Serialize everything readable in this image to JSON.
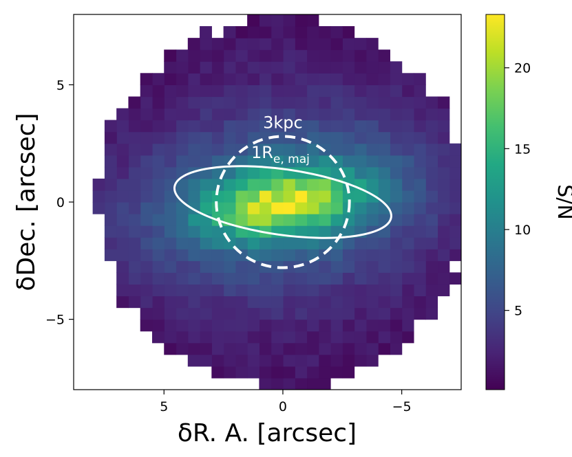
{
  "chart_data": {
    "type": "heatmap",
    "title": "",
    "xlabel": "δR. A.  [arcsec]",
    "ylabel": "δDec.  [arcsec]",
    "x_inverted": true,
    "xlim": [
      8.8,
      -7.5
    ],
    "ylim": [
      -8.0,
      8.0
    ],
    "x_ticks": [
      {
        "value": 5,
        "label": "5"
      },
      {
        "value": 0,
        "label": "0"
      },
      {
        "value": -5,
        "label": "−5"
      }
    ],
    "y_ticks": [
      {
        "value": 5,
        "label": "5"
      },
      {
        "value": 0,
        "label": "0"
      },
      {
        "value": -5,
        "label": "−5"
      }
    ],
    "grid": false,
    "colormap": "viridis",
    "colorbar": {
      "label": "S/N",
      "range": [
        0.1,
        23.3
      ],
      "ticks": [
        {
          "value": 5,
          "label": "5"
        },
        {
          "value": 10,
          "label": "10"
        },
        {
          "value": 15,
          "label": "15"
        },
        {
          "value": 20,
          "label": "20"
        }
      ]
    },
    "spaxel_size_arcsec": 0.5,
    "map_radius_arcsec": 7.8,
    "peak_sn": 23.3,
    "peak_position": [
      0.0,
      0.0
    ],
    "annotations": [
      {
        "text": "3kpc",
        "shape": "dashed-circle",
        "center": [
          0.0,
          0.0
        ],
        "radius_arcsec": 2.8,
        "color": "#ffffff"
      },
      {
        "text": "1R",
        "subscript": "e, maj",
        "shape": "ellipse",
        "center": [
          0.0,
          0.0
        ],
        "semi_major_arcsec": 4.6,
        "semi_minor_arcsec": 1.4,
        "position_angle_deg": -8,
        "color": "#ffffff"
      }
    ]
  }
}
